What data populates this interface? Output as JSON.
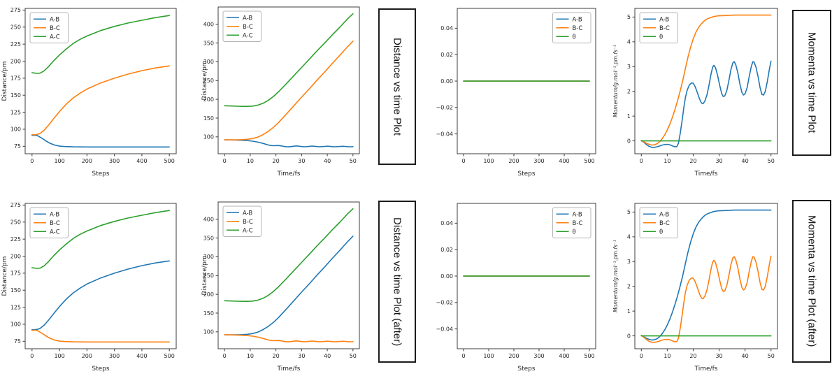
{
  "figure": {
    "background": "#ffffff"
  },
  "colors": {
    "ab": "#1f77b4",
    "bc": "#ff7f0e",
    "ac": "#2ca02c",
    "theta": "#2ca02c"
  },
  "section_labels": [
    {
      "text": "Distance vs time Plot"
    },
    {
      "text": "Momenta vs time Plot"
    },
    {
      "text": "Distance vs time Plot (after)"
    },
    {
      "text": "Momenta vs time Plot (after)"
    }
  ],
  "series_points": {
    "fall_steps": [
      [
        0,
        91
      ],
      [
        10,
        91.3
      ],
      [
        20,
        90.5
      ],
      [
        35,
        87
      ],
      [
        50,
        83
      ],
      [
        65,
        79.5
      ],
      [
        80,
        77
      ],
      [
        100,
        75.2
      ],
      [
        120,
        74.6
      ],
      [
        150,
        74.2
      ],
      [
        200,
        74
      ],
      [
        250,
        74
      ],
      [
        300,
        74
      ],
      [
        350,
        74
      ],
      [
        400,
        74
      ],
      [
        450,
        74
      ],
      [
        500,
        74
      ]
    ],
    "rise_steps": [
      [
        0,
        92
      ],
      [
        10,
        92
      ],
      [
        20,
        92.5
      ],
      [
        30,
        94
      ],
      [
        45,
        99
      ],
      [
        60,
        106
      ],
      [
        80,
        116
      ],
      [
        100,
        126
      ],
      [
        125,
        137
      ],
      [
        150,
        146
      ],
      [
        175,
        153
      ],
      [
        200,
        159
      ],
      [
        250,
        168
      ],
      [
        300,
        175
      ],
      [
        350,
        181
      ],
      [
        400,
        186
      ],
      [
        450,
        190
      ],
      [
        500,
        193
      ]
    ],
    "ac_steps": [
      [
        0,
        183
      ],
      [
        10,
        182.5
      ],
      [
        20,
        182
      ],
      [
        30,
        182.5
      ],
      [
        45,
        186
      ],
      [
        60,
        192
      ],
      [
        80,
        201
      ],
      [
        100,
        209
      ],
      [
        125,
        218
      ],
      [
        150,
        226
      ],
      [
        175,
        232
      ],
      [
        200,
        237
      ],
      [
        250,
        245
      ],
      [
        300,
        251
      ],
      [
        350,
        256
      ],
      [
        400,
        260
      ],
      [
        450,
        264
      ],
      [
        500,
        267
      ]
    ],
    "zero_steps": [
      [
        0,
        0
      ],
      [
        500,
        0
      ]
    ],
    "fall_time": [
      [
        0,
        92
      ],
      [
        3,
        91.8
      ],
      [
        6,
        91.2
      ],
      [
        9,
        90
      ],
      [
        11,
        88.5
      ],
      [
        13,
        86
      ],
      [
        15,
        82.5
      ],
      [
        17,
        78.5
      ],
      [
        18,
        77
      ],
      [
        19,
        76.5
      ],
      [
        20,
        76.8
      ],
      [
        21,
        77
      ],
      [
        22,
        76
      ],
      [
        23,
        74.8
      ],
      [
        24,
        73.8
      ],
      [
        25,
        73.5
      ],
      [
        26,
        74.2
      ],
      [
        27,
        75.2
      ],
      [
        28,
        75.8
      ],
      [
        29,
        75.2
      ],
      [
        30,
        74.2
      ],
      [
        31,
        73.6
      ],
      [
        32,
        74
      ],
      [
        33,
        74.8
      ],
      [
        34,
        75.5
      ],
      [
        35,
        75
      ],
      [
        36,
        74.2
      ],
      [
        37,
        73.6
      ],
      [
        38,
        74
      ],
      [
        39,
        74.6
      ],
      [
        40,
        75.2
      ],
      [
        41,
        74.8
      ],
      [
        42,
        74
      ],
      [
        43,
        73.6
      ],
      [
        44,
        74
      ],
      [
        45,
        74.6
      ],
      [
        46,
        75
      ],
      [
        47,
        74.6
      ],
      [
        48,
        73.8
      ],
      [
        49,
        73.6
      ],
      [
        50,
        73.8
      ]
    ],
    "rise_time": [
      [
        0,
        92
      ],
      [
        3,
        92
      ],
      [
        5,
        92.2
      ],
      [
        7,
        92.6
      ],
      [
        9,
        93.5
      ],
      [
        11,
        95.5
      ],
      [
        13,
        99.5
      ],
      [
        15,
        106
      ],
      [
        17,
        114.5
      ],
      [
        19,
        125
      ],
      [
        21,
        138
      ],
      [
        24,
        160
      ],
      [
        27,
        183
      ],
      [
        30,
        206
      ],
      [
        33,
        228
      ],
      [
        36,
        251
      ],
      [
        39,
        273
      ],
      [
        42,
        296
      ],
      [
        45,
        318
      ],
      [
        48,
        341
      ],
      [
        50,
        355
      ]
    ],
    "ac_time": [
      [
        0,
        183
      ],
      [
        3,
        182.2
      ],
      [
        5,
        181.6
      ],
      [
        7,
        181.2
      ],
      [
        9,
        181.2
      ],
      [
        11,
        182
      ],
      [
        13,
        184.5
      ],
      [
        15,
        189.5
      ],
      [
        17,
        197
      ],
      [
        19,
        207.5
      ],
      [
        21,
        220
      ],
      [
        24,
        241
      ],
      [
        27,
        263
      ],
      [
        30,
        285
      ],
      [
        33,
        307
      ],
      [
        36,
        329
      ],
      [
        39,
        350
      ],
      [
        42,
        372
      ],
      [
        45,
        393
      ],
      [
        48,
        415
      ],
      [
        50,
        428
      ]
    ],
    "osc_time": [
      [
        0,
        0.02
      ],
      [
        1,
        -0.06
      ],
      [
        2,
        -0.15
      ],
      [
        3,
        -0.22
      ],
      [
        4,
        -0.26
      ],
      [
        5,
        -0.26
      ],
      [
        6,
        -0.24
      ],
      [
        7,
        -0.21
      ],
      [
        8,
        -0.17
      ],
      [
        9,
        -0.15
      ],
      [
        10,
        -0.14
      ],
      [
        11,
        -0.16
      ],
      [
        12,
        -0.2
      ],
      [
        13,
        -0.24
      ],
      [
        13.7,
        -0.23
      ],
      [
        14.3,
        -0.1
      ],
      [
        15,
        0.3
      ],
      [
        15.7,
        0.8
      ],
      [
        16.4,
        1.35
      ],
      [
        17,
        1.75
      ],
      [
        17.7,
        2.05
      ],
      [
        18.5,
        2.25
      ],
      [
        19.3,
        2.34
      ],
      [
        20,
        2.33
      ],
      [
        20.8,
        2.18
      ],
      [
        21.6,
        1.95
      ],
      [
        22.4,
        1.7
      ],
      [
        23.2,
        1.53
      ],
      [
        23.8,
        1.5
      ],
      [
        24.5,
        1.6
      ],
      [
        25.3,
        1.85
      ],
      [
        26.1,
        2.25
      ],
      [
        26.9,
        2.7
      ],
      [
        27.5,
        2.98
      ],
      [
        28,
        3.05
      ],
      [
        28.6,
        2.95
      ],
      [
        29.4,
        2.65
      ],
      [
        30.2,
        2.25
      ],
      [
        31,
        1.9
      ],
      [
        31.6,
        1.79
      ],
      [
        32.2,
        1.82
      ],
      [
        33,
        2.05
      ],
      [
        33.8,
        2.45
      ],
      [
        34.6,
        2.9
      ],
      [
        35.3,
        3.15
      ],
      [
        35.8,
        3.2
      ],
      [
        36.4,
        3.08
      ],
      [
        37.2,
        2.75
      ],
      [
        38,
        2.3
      ],
      [
        38.8,
        1.95
      ],
      [
        39.4,
        1.85
      ],
      [
        40,
        1.9
      ],
      [
        40.8,
        2.15
      ],
      [
        41.6,
        2.6
      ],
      [
        42.4,
        3.0
      ],
      [
        43,
        3.2
      ],
      [
        43.5,
        3.18
      ],
      [
        44.2,
        2.98
      ],
      [
        45,
        2.6
      ],
      [
        45.8,
        2.15
      ],
      [
        46.5,
        1.88
      ],
      [
        47.1,
        1.85
      ],
      [
        47.8,
        2.0
      ],
      [
        48.6,
        2.4
      ],
      [
        49.4,
        2.9
      ],
      [
        50,
        3.22
      ]
    ],
    "sig_time": [
      [
        0,
        0.02
      ],
      [
        1,
        -0.04
      ],
      [
        2,
        -0.1
      ],
      [
        3,
        -0.14
      ],
      [
        4,
        -0.17
      ],
      [
        5,
        -0.16
      ],
      [
        6,
        -0.12
      ],
      [
        7,
        -0.04
      ],
      [
        8,
        0.08
      ],
      [
        9,
        0.24
      ],
      [
        10,
        0.44
      ],
      [
        11,
        0.68
      ],
      [
        12,
        0.96
      ],
      [
        13,
        1.28
      ],
      [
        14,
        1.63
      ],
      [
        15,
        2.02
      ],
      [
        16,
        2.45
      ],
      [
        17,
        2.92
      ],
      [
        18,
        3.38
      ],
      [
        19,
        3.78
      ],
      [
        20,
        4.12
      ],
      [
        21,
        4.38
      ],
      [
        22,
        4.57
      ],
      [
        23,
        4.71
      ],
      [
        24,
        4.82
      ],
      [
        25,
        4.9
      ],
      [
        26,
        4.95
      ],
      [
        27,
        4.99
      ],
      [
        28,
        5.02
      ],
      [
        29,
        5.04
      ],
      [
        30,
        5.05
      ],
      [
        32,
        5.06
      ],
      [
        34,
        5.07
      ],
      [
        36,
        5.08
      ],
      [
        40,
        5.08
      ],
      [
        45,
        5.08
      ],
      [
        50,
        5.08
      ]
    ],
    "zero_time": [
      [
        0,
        0
      ],
      [
        50,
        0
      ]
    ]
  },
  "chart_data": [
    {
      "type": "line",
      "title": "",
      "xlabel": "Steps",
      "ylabel": "Distance/pm",
      "xlim": [
        -25,
        525
      ],
      "ylim": [
        64,
        277.5
      ],
      "xticks": [
        0,
        100,
        200,
        300,
        400,
        500
      ],
      "yticks": [
        75,
        100,
        125,
        150,
        175,
        200,
        225,
        250,
        275
      ],
      "legend": "upper left",
      "grid": false,
      "series": [
        {
          "name": "A-B",
          "id": "ab",
          "color": "#1f77b4",
          "points_ref": "fall_steps"
        },
        {
          "name": "B-C",
          "id": "bc",
          "color": "#ff7f0e",
          "points_ref": "rise_steps"
        },
        {
          "name": "A-C",
          "id": "ac",
          "color": "#2ca02c",
          "points_ref": "ac_steps"
        }
      ]
    },
    {
      "type": "line",
      "title": "",
      "xlabel": "Time/fs",
      "ylabel": "Distance/pm",
      "xlim": [
        -2.5,
        52.5
      ],
      "ylim": [
        55,
        446
      ],
      "xticks": [
        0,
        10,
        20,
        30,
        40,
        50
      ],
      "yticks": [
        100,
        150,
        200,
        250,
        300,
        350,
        400
      ],
      "legend": "upper left",
      "grid": false,
      "series": [
        {
          "name": "A-B",
          "id": "ab",
          "color": "#1f77b4",
          "points_ref": "fall_time"
        },
        {
          "name": "B-C",
          "id": "bc",
          "color": "#ff7f0e",
          "points_ref": "rise_time"
        },
        {
          "name": "A-C",
          "id": "ac",
          "color": "#2ca02c",
          "points_ref": "ac_time"
        }
      ]
    },
    {
      "type": "line",
      "title": "",
      "xlabel": "Steps",
      "ylabel": "",
      "xlim": [
        -25,
        525
      ],
      "ylim": [
        -0.055,
        0.055
      ],
      "xticks": [
        0,
        100,
        200,
        300,
        400,
        500
      ],
      "yticks": [
        -0.04,
        -0.02,
        0,
        0.02,
        0.04
      ],
      "ytick_labels": [
        "−0.04",
        "−0.02",
        "0.00",
        "0.02",
        "0.04"
      ],
      "legend": "upper right",
      "grid": false,
      "series": [
        {
          "name": "A-B",
          "id": "ab",
          "color": "#1f77b4",
          "points_ref": "zero_steps"
        },
        {
          "name": "B-C",
          "id": "bc",
          "color": "#ff7f0e",
          "points_ref": "zero_steps"
        },
        {
          "name": "θ",
          "id": "theta",
          "color": "#2ca02c",
          "points_ref": "zero_steps"
        }
      ]
    },
    {
      "type": "line",
      "title": "",
      "xlabel": "Time/fs",
      "ylabel": "Momentum/g.mol⁻¹.pm.fs⁻¹",
      "ylabel_italic": true,
      "xlim": [
        -2.5,
        52.5
      ],
      "ylim": [
        -0.52,
        5.35
      ],
      "xticks": [
        0,
        10,
        20,
        30,
        40,
        50
      ],
      "yticks": [
        0,
        1,
        2,
        3,
        4,
        5
      ],
      "legend": "upper left",
      "grid": false,
      "series": [
        {
          "name": "A-B",
          "id": "ab",
          "color": "#1f77b4",
          "points_ref": "osc_time"
        },
        {
          "name": "B-C",
          "id": "bc",
          "color": "#ff7f0e",
          "points_ref": "sig_time"
        },
        {
          "name": "θ",
          "id": "theta",
          "color": "#2ca02c",
          "points_ref": "zero_time"
        }
      ]
    },
    {
      "type": "line",
      "title": "",
      "xlabel": "Steps",
      "ylabel": "Distance/pm",
      "xlim": [
        -25,
        525
      ],
      "ylim": [
        64,
        277.5
      ],
      "xticks": [
        0,
        100,
        200,
        300,
        400,
        500
      ],
      "yticks": [
        75,
        100,
        125,
        150,
        175,
        200,
        225,
        250,
        275
      ],
      "legend": "upper left",
      "grid": false,
      "series": [
        {
          "name": "A-B",
          "id": "ab",
          "color": "#1f77b4",
          "points_ref": "rise_steps"
        },
        {
          "name": "B-C",
          "id": "bc",
          "color": "#ff7f0e",
          "points_ref": "fall_steps"
        },
        {
          "name": "A-C",
          "id": "ac",
          "color": "#2ca02c",
          "points_ref": "ac_steps"
        }
      ]
    },
    {
      "type": "line",
      "title": "",
      "xlabel": "Time/fs",
      "ylabel": "Distance/pm",
      "xlim": [
        -2.5,
        52.5
      ],
      "ylim": [
        55,
        446
      ],
      "xticks": [
        0,
        10,
        20,
        30,
        40,
        50
      ],
      "yticks": [
        100,
        150,
        200,
        250,
        300,
        350,
        400
      ],
      "legend": "upper left",
      "grid": false,
      "series": [
        {
          "name": "A-B",
          "id": "ab",
          "color": "#1f77b4",
          "points_ref": "rise_time"
        },
        {
          "name": "B-C",
          "id": "bc",
          "color": "#ff7f0e",
          "points_ref": "fall_time"
        },
        {
          "name": "A-C",
          "id": "ac",
          "color": "#2ca02c",
          "points_ref": "ac_time"
        }
      ]
    },
    {
      "type": "line",
      "title": "",
      "xlabel": "Steps",
      "ylabel": "",
      "xlim": [
        -25,
        525
      ],
      "ylim": [
        -0.055,
        0.055
      ],
      "xticks": [
        0,
        100,
        200,
        300,
        400,
        500
      ],
      "yticks": [
        -0.04,
        -0.02,
        0,
        0.02,
        0.04
      ],
      "ytick_labels": [
        "−0.04",
        "−0.02",
        "0.00",
        "0.02",
        "0.04"
      ],
      "legend": "upper right",
      "grid": false,
      "series": [
        {
          "name": "A-B",
          "id": "ab",
          "color": "#1f77b4",
          "points_ref": "zero_steps"
        },
        {
          "name": "B-C",
          "id": "bc",
          "color": "#ff7f0e",
          "points_ref": "zero_steps"
        },
        {
          "name": "θ",
          "id": "theta",
          "color": "#2ca02c",
          "points_ref": "zero_steps"
        }
      ]
    },
    {
      "type": "line",
      "title": "",
      "xlabel": "Time/fs",
      "ylabel": "Momentum/g.mol⁻¹.pm.fs⁻¹",
      "ylabel_italic": true,
      "xlim": [
        -2.5,
        52.5
      ],
      "ylim": [
        -0.52,
        5.35
      ],
      "xticks": [
        0,
        10,
        20,
        30,
        40,
        50
      ],
      "yticks": [
        0,
        1,
        2,
        3,
        4,
        5
      ],
      "legend": "upper left",
      "grid": false,
      "series": [
        {
          "name": "A-B",
          "id": "ab",
          "color": "#1f77b4",
          "points_ref": "sig_time"
        },
        {
          "name": "B-C",
          "id": "bc",
          "color": "#ff7f0e",
          "points_ref": "osc_time"
        },
        {
          "name": "θ",
          "id": "theta",
          "color": "#2ca02c",
          "points_ref": "zero_time"
        }
      ]
    }
  ]
}
